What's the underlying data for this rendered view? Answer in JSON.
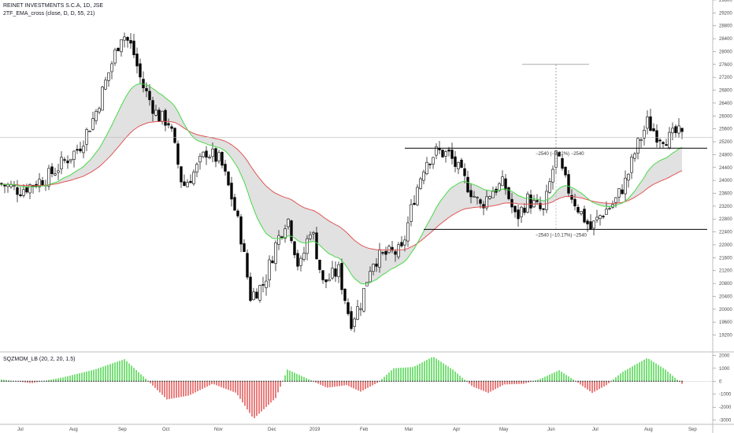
{
  "chart_data": [
    {
      "type": "candlestick",
      "title": "REINET INVESTMENTS S.C.A, 1D, JSE",
      "indicator_label": "2TF_EMA_cross (close, D, D, 55, 21)",
      "ylim": [
        18700,
        29600
      ],
      "y_ticks": [
        19200,
        19600,
        20000,
        20400,
        20800,
        21200,
        21600,
        22000,
        22400,
        22800,
        23200,
        23600,
        24000,
        24400,
        24800,
        25200,
        25600,
        26000,
        26400,
        26800,
        27200,
        27600,
        28000,
        28400,
        28800,
        29200,
        29600
      ],
      "current_price_line": 25340,
      "annotations": {
        "resistance_level": 25000,
        "support_level": 22480,
        "upper_label": "−2540 (−9.22%) −2540",
        "lower_label": "−2540 (−10.17%) −2540",
        "measure_top": 27600,
        "measure_bottom": 25000
      },
      "colors": {
        "up_candle": "#ffffff",
        "down_candle": "#000000",
        "ema_fast": "#4ad94a",
        "ema_slow": "#e05555",
        "fill": "#d9d9d9"
      }
    },
    {
      "type": "bar",
      "title": "SQZMOM_LB (20, 2, 20, 1.5)",
      "ylim": [
        -3200,
        2200
      ],
      "y_ticks": [
        2000,
        1000,
        0,
        -1000,
        -2000,
        -3000
      ],
      "colors": {
        "positive": "#3ed13e",
        "negative": "#e04848",
        "zero_dot": "#000000"
      }
    }
  ],
  "x_axis": {
    "labels": [
      "Jul",
      "Aug",
      "Sep",
      "Oct",
      "Nov",
      "Dec",
      "2019",
      "Feb",
      "Mar",
      "Apr",
      "May",
      "Jun",
      "Jul",
      "Aug",
      "Sep"
    ]
  }
}
